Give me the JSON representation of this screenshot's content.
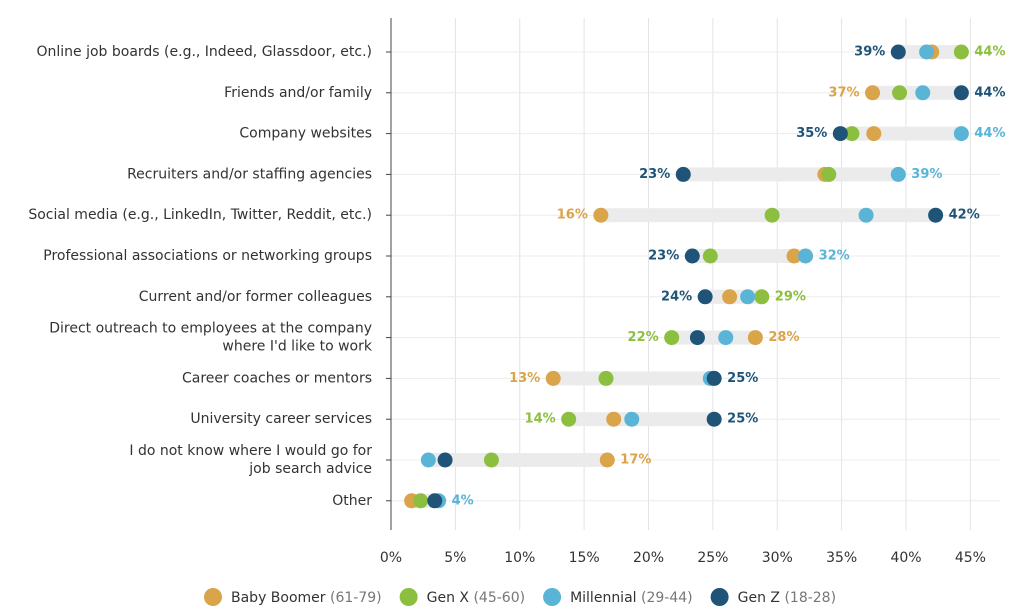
{
  "chart_data": {
    "type": "dot",
    "categories": [
      "Online job boards (e.g., Indeed, Glassdoor, etc.)",
      "Friends and/or family",
      "Company websites",
      "Recruiters and/or staffing agencies",
      "Social media (e.g., LinkedIn, Twitter, Reddit, etc.)",
      "Professional associations or networking groups",
      "Current and/or former colleagues",
      "Direct outreach to employees at the company\nwhere I'd like to work",
      "Career coaches or mentors",
      "University career services",
      "I do not know where I would go for\njob search advice",
      "Other"
    ],
    "series": [
      {
        "name": "Baby Boomer",
        "age_range": "(61-79)",
        "color": "#d9a44a",
        "values": [
          42,
          37.4,
          37.5,
          33.7,
          16.3,
          31.3,
          26.3,
          28.3,
          12.6,
          17.3,
          16.8,
          1.6
        ],
        "value_labels": [
          null,
          "37%",
          null,
          null,
          "16%",
          null,
          null,
          "28%",
          "13%",
          null,
          "17%",
          null
        ]
      },
      {
        "name": "Gen X",
        "age_range": "(45-60)",
        "color": "#8cbf3f",
        "values": [
          44.3,
          39.5,
          35.8,
          34.0,
          29.6,
          24.8,
          28.8,
          21.8,
          16.7,
          13.8,
          7.8,
          2.3
        ],
        "value_labels": [
          "44%",
          null,
          null,
          null,
          null,
          null,
          "29%",
          "22%",
          null,
          "14%",
          null,
          null
        ]
      },
      {
        "name": "Millennial",
        "age_range": "(29-44)",
        "color": "#5ab4d6",
        "values": [
          41.6,
          41.3,
          44.3,
          39.4,
          36.9,
          32.2,
          27.7,
          26.0,
          24.8,
          18.7,
          2.9,
          3.7
        ],
        "value_labels": [
          null,
          null,
          "44%",
          "39%",
          null,
          "32%",
          null,
          null,
          null,
          null,
          null,
          "4%"
        ]
      },
      {
        "name": "Gen Z",
        "age_range": "(18-28)",
        "color": "#1f5478",
        "values": [
          39.4,
          44.3,
          34.9,
          22.7,
          42.3,
          23.4,
          24.4,
          23.8,
          25.1,
          25.1,
          4.2,
          3.4
        ],
        "value_labels": [
          "39%",
          "44%",
          "35%",
          "23%",
          "42%",
          "23%",
          "24%",
          null,
          "25%",
          "25%",
          null,
          null
        ]
      }
    ],
    "xlim": [
      0,
      47.3
    ],
    "xticks": [
      {
        "value": 0,
        "label": "0%"
      },
      {
        "value": 5,
        "label": "5%"
      },
      {
        "value": 10,
        "label": "10%"
      },
      {
        "value": 15,
        "label": "15%"
      },
      {
        "value": 20,
        "label": "20%"
      },
      {
        "value": 25,
        "label": "25%"
      },
      {
        "value": 30,
        "label": "30%"
      },
      {
        "value": 35,
        "label": "35%"
      },
      {
        "value": 40,
        "label": "40%"
      },
      {
        "value": 45,
        "label": "45%"
      }
    ],
    "grid": true
  }
}
